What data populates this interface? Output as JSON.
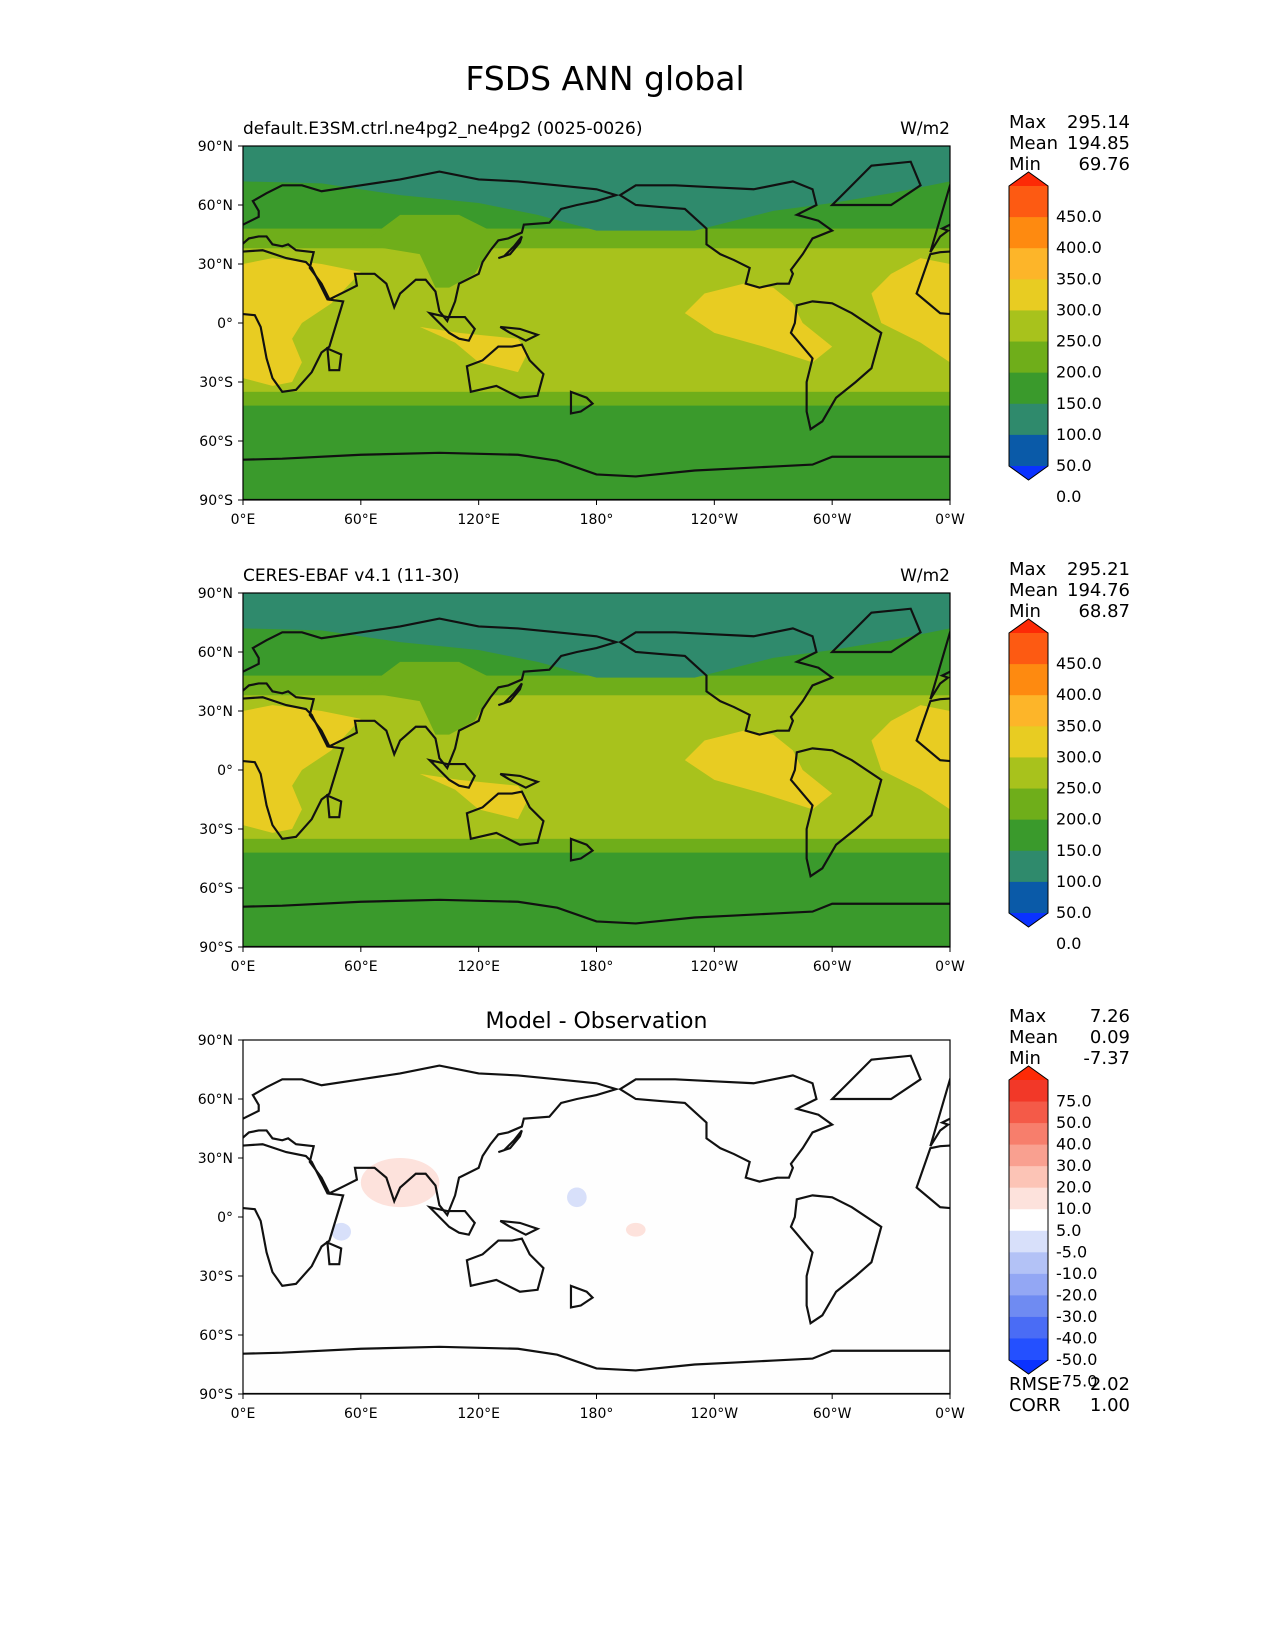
{
  "title": "FSDS ANN global",
  "axes": {
    "lat_ticks": [
      "90°N",
      "60°N",
      "30°N",
      "0°",
      "30°S",
      "60°S",
      "90°S"
    ],
    "lon_ticks": [
      "0°E",
      "60°E",
      "120°E",
      "180°",
      "120°W",
      "60°W",
      "0°W"
    ]
  },
  "abs_colors": [
    "#0a32ff",
    "#0a5aa8",
    "#2f8a6c",
    "#3a9a2c",
    "#6fae1a",
    "#a8c21c",
    "#e8cc22",
    "#fdb529",
    "#fe8a10",
    "#fd5a12",
    "#fd2a06"
  ],
  "diff_colors": [
    "#0a32ff",
    "#2450ff",
    "#4a6cf5",
    "#6f8bf2",
    "#93a7f4",
    "#b3c2f6",
    "#d8e0fa",
    "#ffffff",
    "#fde2dc",
    "#fcc4b6",
    "#f9a090",
    "#f77e6c",
    "#f45a48",
    "#f23828",
    "#fd2a06"
  ],
  "panels": [
    {
      "id": "test",
      "left_title": "default.E3SM.ctrl.ne4pg2_ne4pg2 (0025-0026)",
      "center_title": "",
      "units": "W/m2",
      "stats": [
        {
          "label": "Max",
          "value": "295.14"
        },
        {
          "label": "Mean",
          "value": "194.85"
        },
        {
          "label": "Min",
          "value": "69.76"
        }
      ],
      "colorbar_ticks": [
        "450.0",
        "400.0",
        "350.0",
        "300.0",
        "250.0",
        "200.0",
        "150.0",
        "100.0",
        "50.0",
        "0.0"
      ],
      "extra_stats": []
    },
    {
      "id": "ref",
      "left_title": "CERES-EBAF v4.1 (11-30)",
      "center_title": "",
      "units": "W/m2",
      "stats": [
        {
          "label": "Max",
          "value": "295.21"
        },
        {
          "label": "Mean",
          "value": "194.76"
        },
        {
          "label": "Min",
          "value": "68.87"
        }
      ],
      "colorbar_ticks": [
        "450.0",
        "400.0",
        "350.0",
        "300.0",
        "250.0",
        "200.0",
        "150.0",
        "100.0",
        "50.0",
        "0.0"
      ],
      "extra_stats": []
    },
    {
      "id": "diff",
      "left_title": "",
      "center_title": "Model - Observation",
      "units": "",
      "stats": [
        {
          "label": "Max",
          "value": "7.26"
        },
        {
          "label": "Mean",
          "value": "0.09"
        },
        {
          "label": "Min",
          "value": "-7.37"
        }
      ],
      "colorbar_ticks": [
        "75.0",
        "50.0",
        "40.0",
        "30.0",
        "20.0",
        "10.0",
        "5.0",
        "-5.0",
        "-10.0",
        "-20.0",
        "-30.0",
        "-40.0",
        "-50.0",
        "-75.0"
      ],
      "extra_stats": [
        {
          "label": "RMSE",
          "value": "2.02"
        },
        {
          "label": "CORR",
          "value": "1.00"
        }
      ]
    }
  ],
  "chart_data": [
    {
      "type": "heatmap",
      "name": "default.E3SM.ctrl.ne4pg2_ne4pg2 (0025-0026)",
      "variable": "FSDS",
      "units": "W/m2",
      "projection": "PlateCarree",
      "lon_range": [
        0,
        360
      ],
      "lat_range": [
        -90,
        90
      ],
      "levels": [
        0,
        50,
        100,
        150,
        200,
        250,
        300,
        350,
        400,
        450
      ],
      "zonal_bands": [
        {
          "lat": [
            60,
            90
          ],
          "value_range": [
            50,
            100
          ]
        },
        {
          "lat": [
            40,
            60
          ],
          "value_range": [
            100,
            150
          ]
        },
        {
          "lat": [
            -40,
            40
          ],
          "value_range": [
            200,
            300
          ]
        },
        {
          "lat": [
            -90,
            -40
          ],
          "value_range": [
            100,
            150
          ]
        }
      ],
      "max": 295.14,
      "mean": 194.85,
      "min": 69.76
    },
    {
      "type": "heatmap",
      "name": "CERES-EBAF v4.1 (11-30)",
      "variable": "FSDS",
      "units": "W/m2",
      "projection": "PlateCarree",
      "lon_range": [
        0,
        360
      ],
      "lat_range": [
        -90,
        90
      ],
      "levels": [
        0,
        50,
        100,
        150,
        200,
        250,
        300,
        350,
        400,
        450
      ],
      "zonal_bands": [
        {
          "lat": [
            60,
            90
          ],
          "value_range": [
            50,
            100
          ]
        },
        {
          "lat": [
            40,
            60
          ],
          "value_range": [
            100,
            150
          ]
        },
        {
          "lat": [
            -40,
            40
          ],
          "value_range": [
            200,
            300
          ]
        },
        {
          "lat": [
            -90,
            -40
          ],
          "value_range": [
            100,
            150
          ]
        }
      ],
      "max": 295.21,
      "mean": 194.76,
      "min": 68.87
    },
    {
      "type": "heatmap",
      "name": "Model - Observation",
      "variable": "FSDS",
      "projection": "PlateCarree",
      "lon_range": [
        0,
        360
      ],
      "lat_range": [
        -90,
        90
      ],
      "levels": [
        -75,
        -50,
        -40,
        -30,
        -20,
        -10,
        -5,
        5,
        10,
        20,
        30,
        40,
        50,
        75
      ],
      "anomalies": [
        {
          "lon": [
            60,
            100
          ],
          "lat": [
            5,
            30
          ],
          "value_range": [
            5,
            10
          ]
        },
        {
          "lon": [
            45,
            55
          ],
          "lat": [
            -12,
            -3
          ],
          "value_range": [
            -10,
            -5
          ]
        },
        {
          "lon": [
            165,
            175
          ],
          "lat": [
            5,
            15
          ],
          "value_range": [
            -10,
            -5
          ]
        },
        {
          "lon": [
            195,
            205
          ],
          "lat": [
            -10,
            -3
          ],
          "value_range": [
            5,
            10
          ]
        }
      ],
      "max": 7.26,
      "mean": 0.09,
      "min": -7.37,
      "rmse": 2.02,
      "corr": 1.0
    }
  ]
}
